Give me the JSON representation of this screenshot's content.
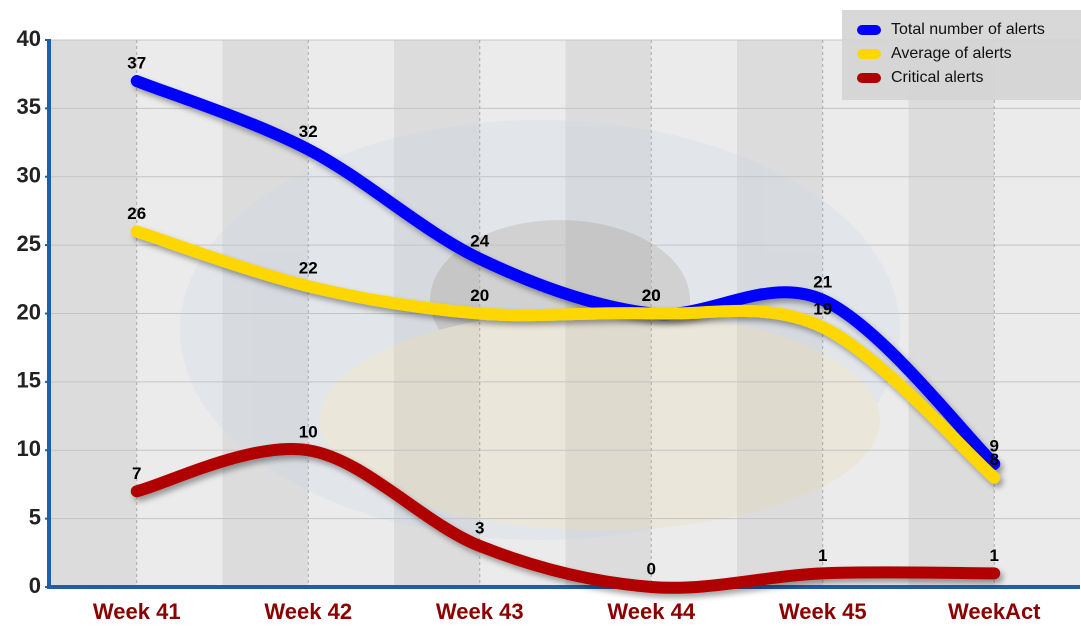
{
  "chart_data": {
    "type": "line",
    "categories": [
      "Week 41",
      "Week 42",
      "Week 43",
      "Week 44",
      "Week 45",
      "WeekAct"
    ],
    "series": [
      {
        "name": "Total number of alerts",
        "color": "#0000ff",
        "values": [
          37,
          32,
          24,
          20,
          21,
          9
        ]
      },
      {
        "name": "Average of alerts",
        "color": "#ffd700",
        "values": [
          26,
          22,
          20,
          20,
          19,
          8
        ]
      },
      {
        "name": "Critical alerts",
        "color": "#b00000",
        "values": [
          7,
          10,
          3,
          0,
          1,
          1
        ]
      }
    ],
    "ylim": [
      0,
      40
    ],
    "yticks": [
      0,
      5,
      10,
      15,
      20,
      25,
      30,
      35,
      40
    ],
    "grid": true,
    "legend": "top-right"
  }
}
